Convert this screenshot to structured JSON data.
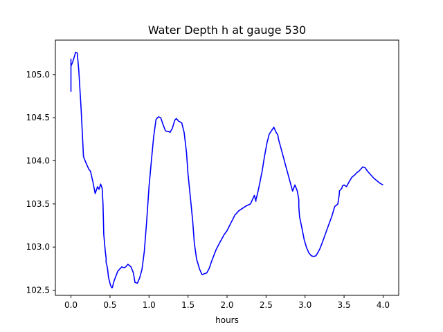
{
  "chart_data": {
    "type": "line",
    "title": "Water Depth h at gauge 530",
    "xlabel": "hours",
    "ylabel": "",
    "xlim": [
      -0.2,
      4.2
    ],
    "ylim": [
      102.44,
      105.4
    ],
    "xticks": [
      0.0,
      0.5,
      1.0,
      1.5,
      2.0,
      2.5,
      3.0,
      3.5,
      4.0
    ],
    "xtick_labels": [
      "0.0",
      "0.5",
      "1.0",
      "1.5",
      "2.0",
      "2.5",
      "3.0",
      "3.5",
      "4.0"
    ],
    "yticks": [
      102.5,
      103.0,
      103.5,
      104.0,
      104.5,
      105.0
    ],
    "ytick_labels": [
      "102.5",
      "103.0",
      "103.5",
      "104.0",
      "104.5",
      "105.0"
    ],
    "grid": false,
    "legend": "none",
    "series": [
      {
        "color": "#0000ff",
        "x": [
          0.0,
          0.0,
          0.0,
          0.02,
          0.04,
          0.06,
          0.08,
          0.1,
          0.13,
          0.16,
          0.19,
          0.23,
          0.25,
          0.28,
          0.31,
          0.34,
          0.36,
          0.38,
          0.4,
          0.41,
          0.42,
          0.43,
          0.44,
          0.45,
          0.45,
          0.46,
          0.47,
          0.48,
          0.5,
          0.51,
          0.52,
          0.53,
          0.55,
          0.57,
          0.6,
          0.62,
          0.65,
          0.68,
          0.7,
          0.73,
          0.77,
          0.8,
          0.82,
          0.85,
          0.88,
          0.91,
          0.94,
          0.97,
          1.0,
          1.03,
          1.06,
          1.09,
          1.12,
          1.15,
          1.18,
          1.21,
          1.23,
          1.25,
          1.27,
          1.3,
          1.33,
          1.35,
          1.38,
          1.42,
          1.45,
          1.48,
          1.5,
          1.53,
          1.56,
          1.58,
          1.61,
          1.65,
          1.68,
          1.71,
          1.74,
          1.77,
          1.8,
          1.83,
          1.86,
          1.9,
          1.93,
          1.96,
          2.0,
          2.05,
          2.1,
          2.15,
          2.2,
          2.25,
          2.3,
          2.35,
          2.37,
          2.37,
          2.38,
          2.39,
          2.41,
          2.45,
          2.48,
          2.51,
          2.54,
          2.57,
          2.6,
          2.63,
          2.65,
          2.66,
          2.69,
          2.72,
          2.75,
          2.78,
          2.81,
          2.84,
          2.87,
          2.9,
          2.92,
          2.92,
          2.93,
          2.96,
          2.99,
          3.02,
          3.05,
          3.08,
          3.11,
          3.14,
          3.16,
          3.19,
          3.22,
          3.26,
          3.3,
          3.34,
          3.38,
          3.42,
          3.44,
          3.44,
          3.47,
          3.48,
          3.5,
          3.53,
          3.56,
          3.6,
          3.64,
          3.66,
          3.69,
          3.71,
          3.74,
          3.77,
          3.8,
          3.84,
          3.88,
          3.92,
          3.96,
          4.0
        ],
        "y": [
          104.8,
          105.18,
          105.1,
          105.14,
          105.2,
          105.26,
          105.25,
          105.05,
          104.6,
          104.05,
          103.98,
          103.9,
          103.88,
          103.76,
          103.62,
          103.7,
          103.67,
          103.73,
          103.68,
          103.5,
          103.15,
          103.05,
          102.95,
          102.87,
          102.82,
          102.79,
          102.74,
          102.65,
          102.58,
          102.55,
          102.53,
          102.53,
          102.6,
          102.65,
          102.72,
          102.74,
          102.77,
          102.76,
          102.77,
          102.8,
          102.77,
          102.7,
          102.59,
          102.58,
          102.64,
          102.74,
          102.95,
          103.3,
          103.7,
          104.0,
          104.28,
          104.48,
          104.51,
          104.5,
          104.42,
          104.35,
          104.34,
          104.34,
          104.33,
          104.38,
          104.47,
          104.49,
          104.46,
          104.44,
          104.33,
          104.1,
          103.85,
          103.58,
          103.3,
          103.05,
          102.86,
          102.74,
          102.68,
          102.69,
          102.7,
          102.75,
          102.83,
          102.9,
          102.97,
          103.04,
          103.09,
          103.14,
          103.19,
          103.28,
          103.37,
          103.42,
          103.45,
          103.48,
          103.5,
          103.6,
          103.53,
          103.55,
          103.58,
          103.62,
          103.7,
          103.88,
          104.05,
          104.2,
          104.31,
          104.35,
          104.39,
          104.33,
          104.3,
          104.25,
          104.15,
          104.05,
          103.95,
          103.85,
          103.75,
          103.65,
          103.72,
          103.65,
          103.55,
          103.47,
          103.35,
          103.22,
          103.08,
          102.99,
          102.93,
          102.9,
          102.89,
          102.9,
          102.93,
          102.98,
          103.05,
          103.15,
          103.25,
          103.35,
          103.47,
          103.5,
          103.62,
          103.65,
          103.68,
          103.71,
          103.72,
          103.7,
          103.75,
          103.81,
          103.84,
          103.86,
          103.88,
          103.9,
          103.93,
          103.92,
          103.88,
          103.84,
          103.8,
          103.77,
          103.74,
          103.72
        ]
      }
    ]
  }
}
